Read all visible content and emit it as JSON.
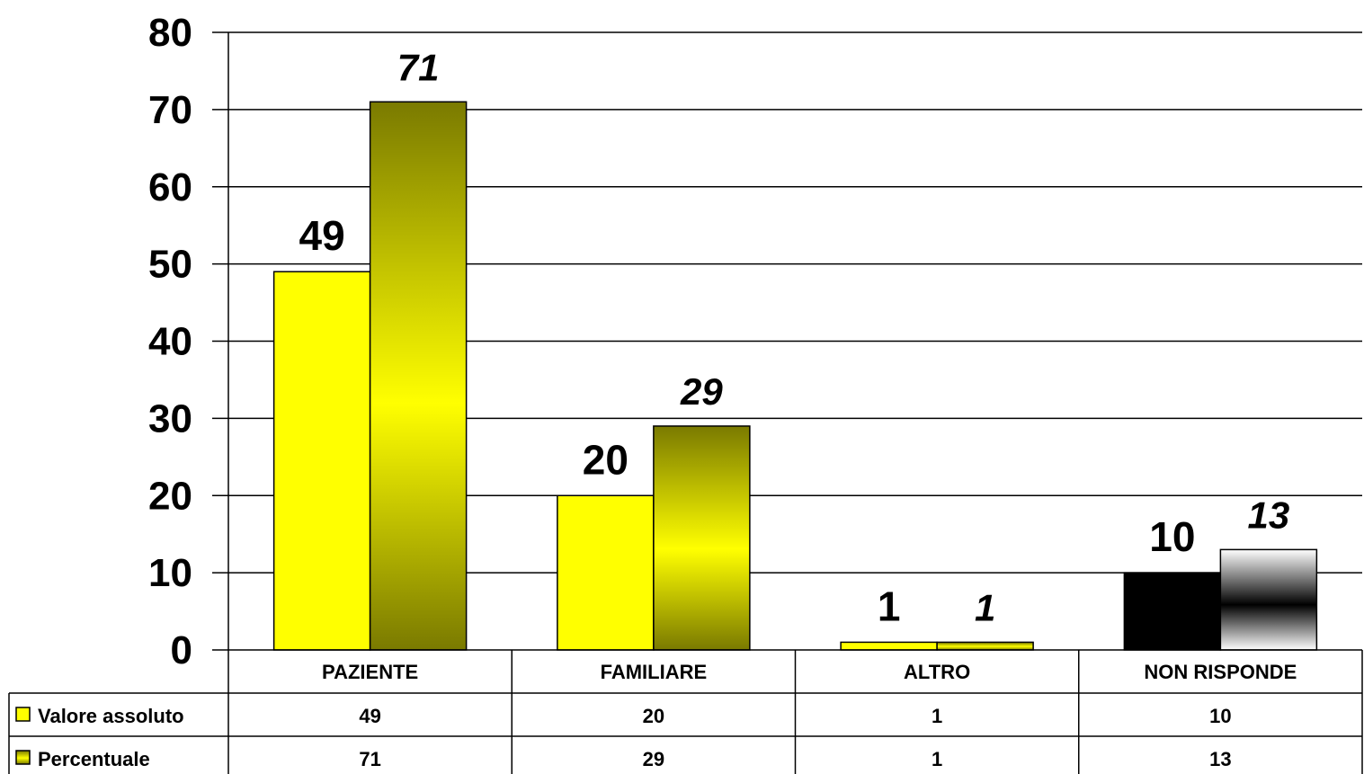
{
  "chart_data": {
    "type": "bar",
    "categories": [
      "PAZIENTE",
      "FAMILIARE",
      "ALTRO",
      "NON RISPONDE"
    ],
    "series": [
      {
        "name": "Valore assoluto",
        "values": [
          49,
          20,
          1,
          10
        ]
      },
      {
        "name": "Percentuale",
        "values": [
          71,
          29,
          1,
          13
        ]
      }
    ],
    "ylim": [
      0,
      80
    ],
    "yticks": [
      0,
      10,
      20,
      30,
      40,
      50,
      60,
      70,
      80
    ],
    "grid": true,
    "legend": "data-table-bottom",
    "colors": {
      "absolute": "#ffff00",
      "percent_dark": "#7a7a00",
      "percent_light": "#ffff00",
      "nr_absolute": "#000000",
      "nr_percent_light": "#ffffff",
      "nr_percent_dark": "#000000"
    }
  }
}
